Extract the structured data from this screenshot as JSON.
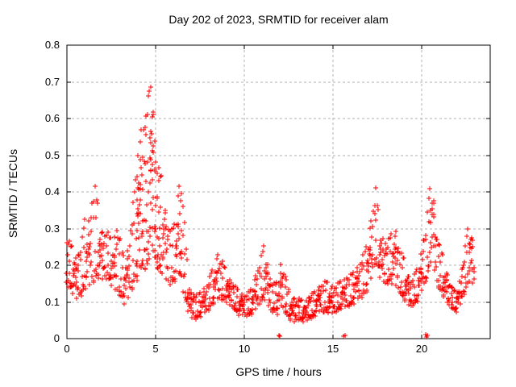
{
  "chart_data": {
    "type": "scatter",
    "title": "Day 202 of 2023, SRMTID for receiver alam",
    "xlabel": "GPS time / hours",
    "ylabel": "SRMTID / TECUs",
    "xlim": [
      0,
      23.86
    ],
    "ylim": [
      0,
      0.8
    ],
    "xticks": [
      "0",
      "5",
      "10",
      "15",
      "20"
    ],
    "yticks": [
      "0",
      "0.1",
      "0.2",
      "0.3",
      "0.4",
      "0.5",
      "0.6",
      "0.7",
      "0.8"
    ],
    "grid": true,
    "legend": "none",
    "marker": "plus",
    "marker_size_px": 7,
    "colors": {
      "marker": "#ff0000",
      "grid": "#b0b0b0",
      "axis": "#000000",
      "background": "#ffffff"
    },
    "series_note": "Single dense red time series (~30 s cadence). Values below are the scatter envelope [t_hours, min_TECUs, max_TECUs] read off the plot; points fill each column between min and max.",
    "envelope": [
      [
        0.0,
        0.14,
        0.28
      ],
      [
        0.2,
        0.13,
        0.26
      ],
      [
        0.4,
        0.11,
        0.24
      ],
      [
        0.6,
        0.1,
        0.22
      ],
      [
        0.8,
        0.11,
        0.26
      ],
      [
        1.0,
        0.13,
        0.33
      ],
      [
        1.2,
        0.12,
        0.3
      ],
      [
        1.4,
        0.14,
        0.4
      ],
      [
        1.6,
        0.15,
        0.42
      ],
      [
        1.8,
        0.16,
        0.33
      ],
      [
        2.0,
        0.15,
        0.29
      ],
      [
        2.2,
        0.16,
        0.3
      ],
      [
        2.4,
        0.15,
        0.28
      ],
      [
        2.6,
        0.12,
        0.26
      ],
      [
        2.8,
        0.12,
        0.31
      ],
      [
        3.0,
        0.11,
        0.28
      ],
      [
        3.2,
        0.09,
        0.21
      ],
      [
        3.4,
        0.09,
        0.24
      ],
      [
        3.6,
        0.12,
        0.32
      ],
      [
        3.8,
        0.14,
        0.4
      ],
      [
        4.0,
        0.15,
        0.5
      ],
      [
        4.2,
        0.16,
        0.58
      ],
      [
        4.35,
        0.17,
        0.64
      ],
      [
        4.5,
        0.18,
        0.6
      ],
      [
        4.65,
        0.2,
        0.71
      ],
      [
        4.8,
        0.22,
        0.67
      ],
      [
        4.95,
        0.2,
        0.59
      ],
      [
        5.1,
        0.18,
        0.48
      ],
      [
        5.3,
        0.17,
        0.45
      ],
      [
        5.5,
        0.16,
        0.38
      ],
      [
        5.7,
        0.14,
        0.33
      ],
      [
        5.9,
        0.14,
        0.3
      ],
      [
        6.1,
        0.15,
        0.32
      ],
      [
        6.3,
        0.16,
        0.4
      ],
      [
        6.45,
        0.15,
        0.46
      ],
      [
        6.6,
        0.11,
        0.33
      ],
      [
        6.8,
        0.07,
        0.18
      ],
      [
        7.0,
        0.05,
        0.13
      ],
      [
        7.3,
        0.05,
        0.12
      ],
      [
        7.6,
        0.06,
        0.13
      ],
      [
        7.9,
        0.07,
        0.15
      ],
      [
        8.2,
        0.09,
        0.19
      ],
      [
        8.5,
        0.1,
        0.23
      ],
      [
        8.8,
        0.1,
        0.21
      ],
      [
        9.1,
        0.09,
        0.17
      ],
      [
        9.4,
        0.08,
        0.15
      ],
      [
        9.7,
        0.06,
        0.13
      ],
      [
        10.0,
        0.06,
        0.12
      ],
      [
        10.3,
        0.06,
        0.13
      ],
      [
        10.6,
        0.07,
        0.16
      ],
      [
        10.9,
        0.09,
        0.22
      ],
      [
        11.1,
        0.1,
        0.26
      ],
      [
        11.3,
        0.09,
        0.22
      ],
      [
        11.5,
        0.07,
        0.16
      ],
      [
        11.7,
        0.07,
        0.15
      ],
      [
        11.9,
        0.06,
        0.16
      ],
      [
        12.1,
        0.08,
        0.22
      ],
      [
        12.3,
        0.07,
        0.18
      ],
      [
        12.5,
        0.05,
        0.13
      ],
      [
        12.8,
        0.04,
        0.11
      ],
      [
        13.1,
        0.05,
        0.11
      ],
      [
        13.4,
        0.04,
        0.1
      ],
      [
        13.7,
        0.05,
        0.12
      ],
      [
        14.0,
        0.06,
        0.13
      ],
      [
        14.3,
        0.07,
        0.15
      ],
      [
        14.6,
        0.07,
        0.16
      ],
      [
        14.9,
        0.06,
        0.14
      ],
      [
        15.2,
        0.07,
        0.15
      ],
      [
        15.5,
        0.08,
        0.16
      ],
      [
        15.8,
        0.08,
        0.17
      ],
      [
        16.1,
        0.09,
        0.18
      ],
      [
        16.4,
        0.1,
        0.2
      ],
      [
        16.7,
        0.11,
        0.23
      ],
      [
        17.0,
        0.13,
        0.28
      ],
      [
        17.2,
        0.16,
        0.34
      ],
      [
        17.4,
        0.2,
        0.42
      ],
      [
        17.6,
        0.16,
        0.33
      ],
      [
        17.8,
        0.15,
        0.28
      ],
      [
        18.0,
        0.14,
        0.26
      ],
      [
        18.2,
        0.15,
        0.28
      ],
      [
        18.4,
        0.14,
        0.3
      ],
      [
        18.6,
        0.13,
        0.3
      ],
      [
        18.8,
        0.12,
        0.24
      ],
      [
        19.0,
        0.1,
        0.22
      ],
      [
        19.2,
        0.09,
        0.18
      ],
      [
        19.4,
        0.08,
        0.16
      ],
      [
        19.6,
        0.09,
        0.18
      ],
      [
        19.8,
        0.1,
        0.2
      ],
      [
        20.0,
        0.12,
        0.24
      ],
      [
        20.2,
        0.14,
        0.3
      ],
      [
        20.4,
        0.18,
        0.4
      ],
      [
        20.55,
        0.22,
        0.46
      ],
      [
        20.7,
        0.18,
        0.38
      ],
      [
        20.9,
        0.14,
        0.28
      ],
      [
        21.1,
        0.12,
        0.24
      ],
      [
        21.3,
        0.1,
        0.2
      ],
      [
        21.5,
        0.09,
        0.17
      ],
      [
        21.7,
        0.08,
        0.14
      ],
      [
        21.9,
        0.07,
        0.13
      ],
      [
        22.1,
        0.08,
        0.15
      ],
      [
        22.3,
        0.1,
        0.2
      ],
      [
        22.5,
        0.13,
        0.27
      ],
      [
        22.7,
        0.16,
        0.34
      ],
      [
        22.85,
        0.15,
        0.28
      ],
      [
        22.95,
        0.14,
        0.22
      ]
    ],
    "outliers_near_zero": [
      [
        11.93,
        0.008
      ],
      [
        11.99,
        0.006
      ],
      [
        15.58,
        0.007
      ],
      [
        15.66,
        0.009
      ],
      [
        20.22,
        0.01
      ],
      [
        20.26,
        0.005
      ],
      [
        20.3,
        0.008
      ]
    ],
    "scatter_gen": {
      "step": 0.045,
      "fractions": [
        0.04,
        0.52,
        0.87,
        0.21,
        0.66,
        0.1,
        0.95,
        0.33,
        0.74,
        0.15,
        0.58,
        0.27,
        0.99,
        0.44,
        0.08,
        0.69
      ],
      "pick1": [
        7,
        2
      ],
      "pick2": [
        13,
        5
      ],
      "pick3": [
        5,
        11
      ],
      "pick_extra": [
        [
          3,
          1
        ],
        [
          9,
          7
        ]
      ],
      "third_every": 3,
      "widespan": 0.28,
      "xjitter": 0.05,
      "ymin_clamp": 0.004,
      "ymax_clamp": 0.79
    }
  }
}
